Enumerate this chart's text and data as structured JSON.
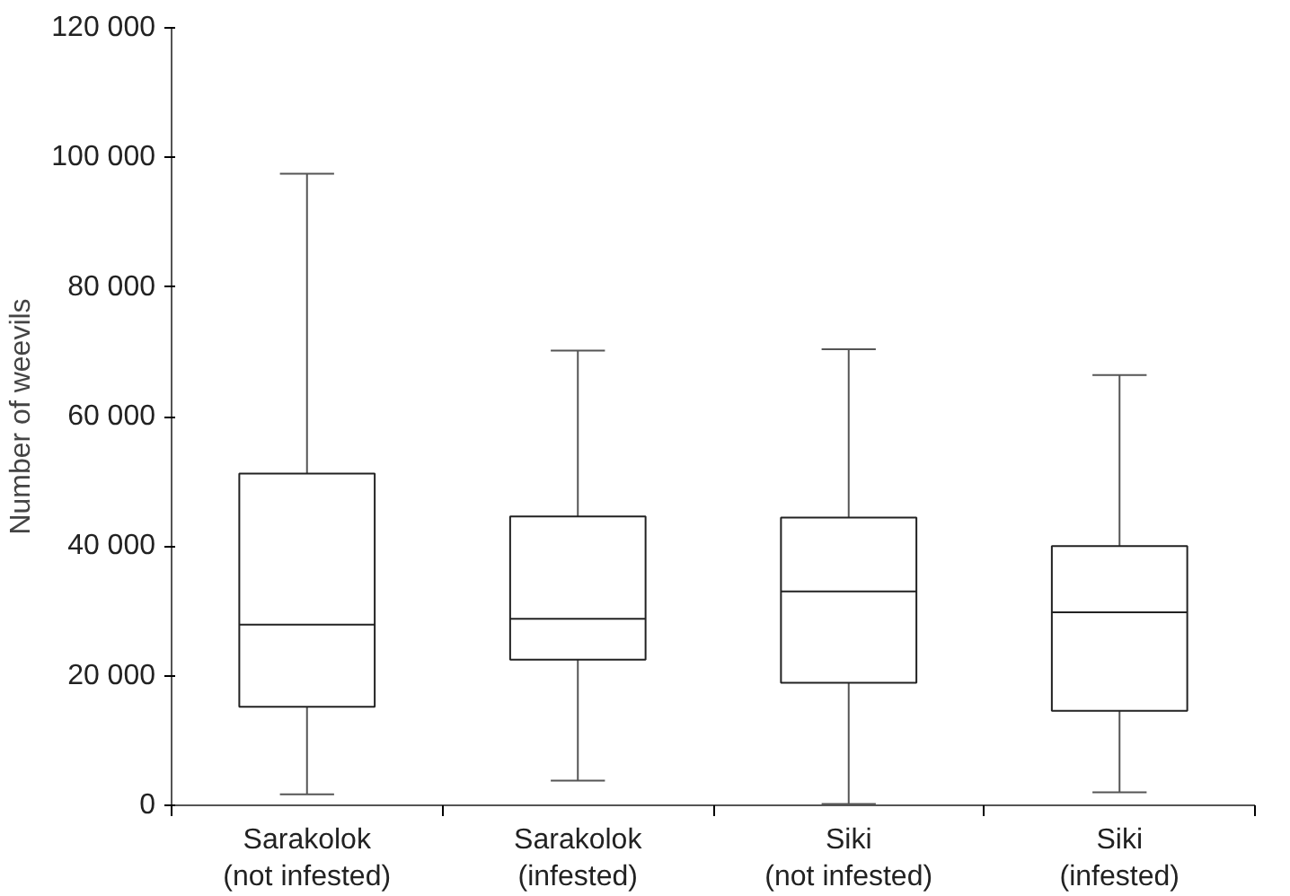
{
  "chart_data": {
    "type": "box",
    "ylabel": "Number of weevils",
    "categories": [
      "Sarakolok\n(not infested)",
      "Sarakolok\n(infested)",
      "Siki\n(not infested)",
      "Siki\n(infested)"
    ],
    "boxes": [
      {
        "low": 1700,
        "q1": 15200,
        "median": 27900,
        "q3": 51200,
        "high": 97500
      },
      {
        "low": 3800,
        "q1": 22500,
        "median": 28800,
        "q3": 44600,
        "high": 70200
      },
      {
        "low": 200,
        "q1": 18900,
        "median": 33000,
        "q3": 44400,
        "high": 70400
      },
      {
        "low": 2000,
        "q1": 14600,
        "median": 29800,
        "q3": 40000,
        "high": 66400
      }
    ],
    "color": "#ffffff",
    "ylim": [
      0,
      120000
    ],
    "yticks": [
      {
        "value": 0,
        "label": "0"
      },
      {
        "value": 20000,
        "label": "20 000"
      },
      {
        "value": 40000,
        "label": "40 000"
      },
      {
        "value": 60000,
        "label": "60 000"
      },
      {
        "value": 80000,
        "label": "80 000"
      },
      {
        "value": 100000,
        "label": "100 000"
      },
      {
        "value": 120000,
        "label": "120 000"
      }
    ],
    "grid": false
  }
}
